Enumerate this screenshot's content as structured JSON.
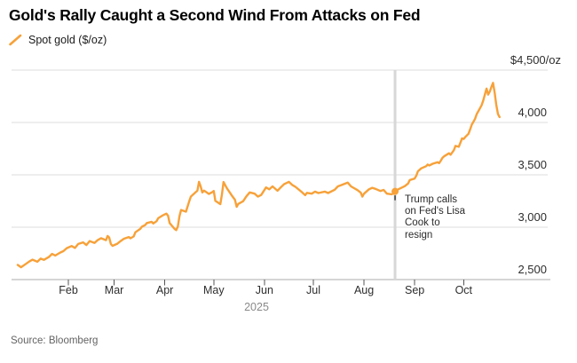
{
  "header": {
    "title": "Gold's Rally Caught a Second Wind From Attacks on Fed",
    "legend": {
      "label": "Spot gold ($/oz)",
      "swatch_color": "#F7A139"
    }
  },
  "annotation": {
    "text": "Trump calls\non Fed's Lisa\nCook to\nresign",
    "date": "2025-08-20",
    "value": 3342
  },
  "source": {
    "label": "Source: Bloomberg"
  },
  "chart_data": {
    "type": "line",
    "title": "Gold's Rally Caught a Second Wind From Attacks on Fed",
    "xlabel": "2025",
    "ylabel": "$/oz",
    "legend_position": "top-left",
    "grid": true,
    "colors": {
      "line": "#F7A139",
      "gridline": "#dcdcdc",
      "axis": "#ababab",
      "tick": "#555555",
      "event_line": "#d7d7d7",
      "annotation_marker": "#F7A139"
    },
    "x_axis": {
      "start": "2025-01-01",
      "end": "2025-11-01",
      "year_label": "2025",
      "ticks": [
        {
          "date": "2025-02-01",
          "label": "Feb"
        },
        {
          "date": "2025-03-01",
          "label": "Mar"
        },
        {
          "date": "2025-04-01",
          "label": "Apr"
        },
        {
          "date": "2025-05-01",
          "label": "May"
        },
        {
          "date": "2025-06-01",
          "label": "Jun"
        },
        {
          "date": "2025-07-01",
          "label": "Jul"
        },
        {
          "date": "2025-08-01",
          "label": "Aug"
        },
        {
          "date": "2025-09-01",
          "label": "Sep"
        },
        {
          "date": "2025-10-01",
          "label": "Oct"
        }
      ]
    },
    "y_axis": {
      "unit": "$/oz",
      "min": 2500,
      "max": 4500,
      "ticks": [
        {
          "value": 4500,
          "label": "$4,500/oz"
        },
        {
          "value": 4000,
          "label": "4,000"
        },
        {
          "value": 3500,
          "label": "3,500"
        },
        {
          "value": 3000,
          "label": "3,000"
        },
        {
          "value": 2500,
          "label": "2,500"
        }
      ]
    },
    "event_line": {
      "date": "2025-08-20",
      "label": "Trump calls on Fed's Lisa Cook to resign"
    },
    "series": [
      {
        "name": "Spot gold ($/oz)",
        "color": "#F7A139",
        "points": [
          [
            "2025-01-01",
            2640
          ],
          [
            "2025-01-03",
            2618
          ],
          [
            "2025-01-06",
            2650
          ],
          [
            "2025-01-08",
            2672
          ],
          [
            "2025-01-10",
            2690
          ],
          [
            "2025-01-13",
            2670
          ],
          [
            "2025-01-15",
            2700
          ],
          [
            "2025-01-17",
            2688
          ],
          [
            "2025-01-20",
            2715
          ],
          [
            "2025-01-22",
            2745
          ],
          [
            "2025-01-24",
            2730
          ],
          [
            "2025-01-27",
            2758
          ],
          [
            "2025-01-29",
            2772
          ],
          [
            "2025-01-31",
            2800
          ],
          [
            "2025-02-03",
            2820
          ],
          [
            "2025-02-05",
            2802
          ],
          [
            "2025-02-07",
            2840
          ],
          [
            "2025-02-10",
            2855
          ],
          [
            "2025-02-12",
            2830
          ],
          [
            "2025-02-14",
            2868
          ],
          [
            "2025-02-17",
            2850
          ],
          [
            "2025-02-19",
            2878
          ],
          [
            "2025-02-21",
            2895
          ],
          [
            "2025-02-24",
            2876
          ],
          [
            "2025-02-25",
            2916
          ],
          [
            "2025-02-26",
            2902
          ],
          [
            "2025-02-27",
            2840
          ],
          [
            "2025-02-28",
            2822
          ],
          [
            "2025-03-03",
            2842
          ],
          [
            "2025-03-05",
            2868
          ],
          [
            "2025-03-07",
            2890
          ],
          [
            "2025-03-10",
            2906
          ],
          [
            "2025-03-11",
            2894
          ],
          [
            "2025-03-13",
            2912
          ],
          [
            "2025-03-14",
            2952
          ],
          [
            "2025-03-17",
            2984
          ],
          [
            "2025-03-18",
            3004
          ],
          [
            "2025-03-20",
            3020
          ],
          [
            "2025-03-21",
            3040
          ],
          [
            "2025-03-24",
            3052
          ],
          [
            "2025-03-25",
            3036
          ],
          [
            "2025-03-27",
            3058
          ],
          [
            "2025-03-28",
            3086
          ],
          [
            "2025-03-31",
            3115
          ],
          [
            "2025-04-02",
            3130
          ],
          [
            "2025-04-03",
            3110
          ],
          [
            "2025-04-04",
            3040
          ],
          [
            "2025-04-07",
            2985
          ],
          [
            "2025-04-08",
            2972
          ],
          [
            "2025-04-09",
            3005
          ],
          [
            "2025-04-10",
            3105
          ],
          [
            "2025-04-11",
            3164
          ],
          [
            "2025-04-14",
            3148
          ],
          [
            "2025-04-16",
            3248
          ],
          [
            "2025-04-17",
            3292
          ],
          [
            "2025-04-21",
            3350
          ],
          [
            "2025-04-22",
            3433
          ],
          [
            "2025-04-23",
            3388
          ],
          [
            "2025-04-24",
            3332
          ],
          [
            "2025-04-25",
            3350
          ],
          [
            "2025-04-28",
            3318
          ],
          [
            "2025-04-30",
            3334
          ],
          [
            "2025-05-01",
            3346
          ],
          [
            "2025-05-02",
            3252
          ],
          [
            "2025-05-05",
            3220
          ],
          [
            "2025-05-06",
            3312
          ],
          [
            "2025-05-07",
            3431
          ],
          [
            "2025-05-09",
            3374
          ],
          [
            "2025-05-12",
            3304
          ],
          [
            "2025-05-14",
            3262
          ],
          [
            "2025-05-15",
            3195
          ],
          [
            "2025-05-16",
            3222
          ],
          [
            "2025-05-19",
            3248
          ],
          [
            "2025-05-21",
            3295
          ],
          [
            "2025-05-23",
            3332
          ],
          [
            "2025-05-26",
            3320
          ],
          [
            "2025-05-28",
            3292
          ],
          [
            "2025-05-30",
            3308
          ],
          [
            "2025-06-02",
            3380
          ],
          [
            "2025-06-04",
            3362
          ],
          [
            "2025-06-06",
            3390
          ],
          [
            "2025-06-09",
            3348
          ],
          [
            "2025-06-11",
            3380
          ],
          [
            "2025-06-13",
            3410
          ],
          [
            "2025-06-16",
            3433
          ],
          [
            "2025-06-18",
            3404
          ],
          [
            "2025-06-20",
            3386
          ],
          [
            "2025-06-24",
            3334
          ],
          [
            "2025-06-26",
            3306
          ],
          [
            "2025-06-27",
            3328
          ],
          [
            "2025-06-30",
            3320
          ],
          [
            "2025-07-02",
            3340
          ],
          [
            "2025-07-04",
            3326
          ],
          [
            "2025-07-08",
            3340
          ],
          [
            "2025-07-10",
            3326
          ],
          [
            "2025-07-14",
            3358
          ],
          [
            "2025-07-16",
            3390
          ],
          [
            "2025-07-18",
            3402
          ],
          [
            "2025-07-22",
            3426
          ],
          [
            "2025-07-24",
            3390
          ],
          [
            "2025-07-28",
            3354
          ],
          [
            "2025-07-30",
            3330
          ],
          [
            "2025-07-31",
            3292
          ],
          [
            "2025-08-01",
            3320
          ],
          [
            "2025-08-04",
            3362
          ],
          [
            "2025-08-06",
            3376
          ],
          [
            "2025-08-08",
            3366
          ],
          [
            "2025-08-11",
            3346
          ],
          [
            "2025-08-13",
            3356
          ],
          [
            "2025-08-15",
            3320
          ],
          [
            "2025-08-18",
            3314
          ],
          [
            "2025-08-19",
            3324
          ],
          [
            "2025-08-20",
            3342
          ],
          [
            "2025-08-22",
            3362
          ],
          [
            "2025-08-26",
            3392
          ],
          [
            "2025-08-28",
            3418
          ],
          [
            "2025-08-29",
            3450
          ],
          [
            "2025-09-01",
            3464
          ],
          [
            "2025-09-02",
            3492
          ],
          [
            "2025-09-03",
            3534
          ],
          [
            "2025-09-05",
            3562
          ],
          [
            "2025-09-08",
            3582
          ],
          [
            "2025-09-09",
            3598
          ],
          [
            "2025-09-10",
            3590
          ],
          [
            "2025-09-12",
            3606
          ],
          [
            "2025-09-15",
            3620
          ],
          [
            "2025-09-16",
            3612
          ],
          [
            "2025-09-17",
            3636
          ],
          [
            "2025-09-18",
            3662
          ],
          [
            "2025-09-19",
            3676
          ],
          [
            "2025-09-22",
            3706
          ],
          [
            "2025-09-23",
            3692
          ],
          [
            "2025-09-25",
            3736
          ],
          [
            "2025-09-26",
            3776
          ],
          [
            "2025-09-28",
            3768
          ],
          [
            "2025-09-29",
            3806
          ],
          [
            "2025-09-30",
            3848
          ],
          [
            "2025-10-01",
            3842
          ],
          [
            "2025-10-02",
            3862
          ],
          [
            "2025-10-04",
            3892
          ],
          [
            "2025-10-05",
            3936
          ],
          [
            "2025-10-06",
            3980
          ],
          [
            "2025-10-07",
            4008
          ],
          [
            "2025-10-08",
            4036
          ],
          [
            "2025-10-09",
            4080
          ],
          [
            "2025-10-11",
            4136
          ],
          [
            "2025-10-12",
            4166
          ],
          [
            "2025-10-13",
            4210
          ],
          [
            "2025-10-14",
            4266
          ],
          [
            "2025-10-15",
            4324
          ],
          [
            "2025-10-16",
            4266
          ],
          [
            "2025-10-17",
            4296
          ],
          [
            "2025-10-18",
            4340
          ],
          [
            "2025-10-19",
            4378
          ],
          [
            "2025-10-20",
            4282
          ],
          [
            "2025-10-21",
            4166
          ],
          [
            "2025-10-22",
            4080
          ],
          [
            "2025-10-23",
            4052
          ]
        ]
      }
    ]
  }
}
